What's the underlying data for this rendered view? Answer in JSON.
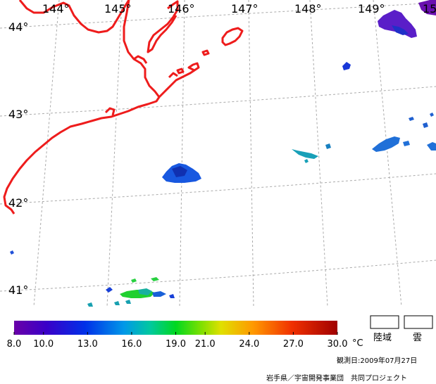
{
  "map": {
    "longitude_labels": [
      "144°",
      "145°",
      "146°",
      "147°",
      "148°",
      "149°",
      "15"
    ],
    "latitude_labels": [
      "44°",
      "43°",
      "42°",
      "41°"
    ]
  },
  "colorbar": {
    "ticks": [
      "8.0",
      "10.0",
      "13.0",
      "16.0",
      "19.0",
      "21.0",
      "24.0",
      "27.0",
      "30.0"
    ],
    "unit": "°C",
    "min": 8.0,
    "max": 30.0
  },
  "legend": {
    "land_label": "陸域",
    "cloud_label": "雲"
  },
  "footer": {
    "observation_date": "観測日:2009年07月27日",
    "credit": "岩手県／宇宙開発事業団　共同プロジェクト"
  },
  "colors": {
    "coastline": "#ee1c1c",
    "grid": "#aaaaaa"
  }
}
